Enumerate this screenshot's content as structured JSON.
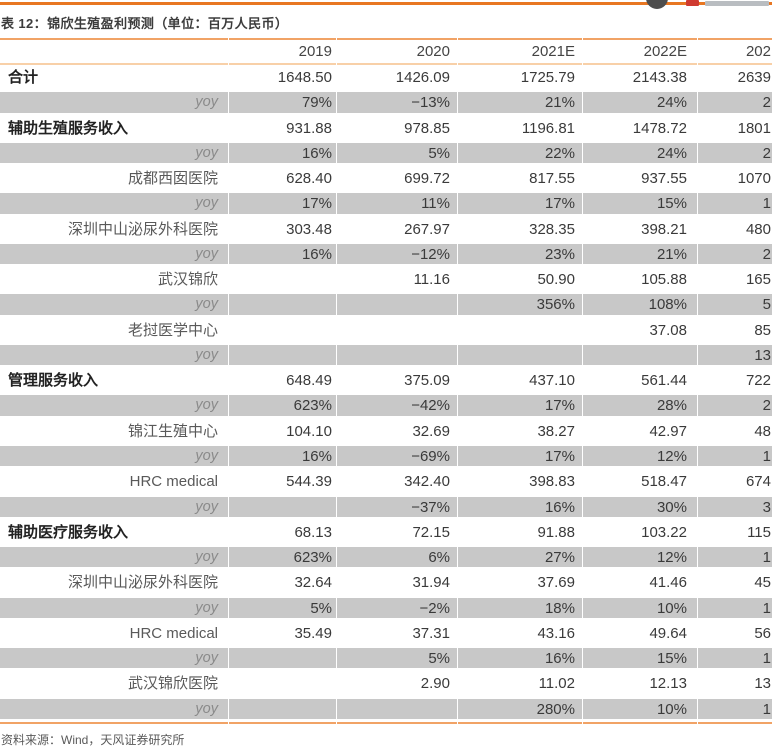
{
  "page": {
    "title": "表 12：锦欣生殖盈利预测（单位：百万人民币）",
    "source_note": "资料来源：Wind，天风证券研究所"
  },
  "colors": {
    "accent_orange": "#e87722",
    "rule_orange": "#f1a366",
    "rule_peach": "#f8d0a8",
    "row_gray": "#c8c8c8",
    "logo_red": "#cf3a30"
  },
  "table": {
    "columns": [
      "",
      "2019",
      "2020",
      "2021E",
      "2022E",
      "202"
    ],
    "rows": [
      {
        "label": "合计",
        "style": "section",
        "values": [
          "1648.50",
          "1426.09",
          "1725.79",
          "2143.38",
          "2639"
        ]
      },
      {
        "label": "yoy",
        "style": "yoy",
        "values": [
          "79%",
          "−13%",
          "21%",
          "24%",
          "2"
        ]
      },
      {
        "label": "辅助生殖服务收入",
        "style": "section",
        "values": [
          "931.88",
          "978.85",
          "1196.81",
          "1478.72",
          "1801"
        ]
      },
      {
        "label": "yoy",
        "style": "yoy",
        "values": [
          "16%",
          "5%",
          "22%",
          "24%",
          "2"
        ]
      },
      {
        "label": "成都西囡医院",
        "style": "sub",
        "values": [
          "628.40",
          "699.72",
          "817.55",
          "937.55",
          "1070"
        ]
      },
      {
        "label": "yoy",
        "style": "yoy",
        "values": [
          "17%",
          "11%",
          "17%",
          "15%",
          "1"
        ]
      },
      {
        "label": "深圳中山泌尿外科医院",
        "style": "sub",
        "values": [
          "303.48",
          "267.97",
          "328.35",
          "398.21",
          "480"
        ]
      },
      {
        "label": "yoy",
        "style": "yoy",
        "values": [
          "16%",
          "−12%",
          "23%",
          "21%",
          "2"
        ]
      },
      {
        "label": "武汉锦欣",
        "style": "sub",
        "values": [
          "",
          "11.16",
          "50.90",
          "105.88",
          "165"
        ]
      },
      {
        "label": "yoy",
        "style": "yoy",
        "values": [
          "",
          "",
          "356%",
          "108%",
          "5"
        ]
      },
      {
        "label": "老挝医学中心",
        "style": "sub",
        "values": [
          "",
          "",
          "",
          "37.08",
          "85"
        ]
      },
      {
        "label": "yoy",
        "style": "yoy",
        "values": [
          "",
          "",
          "",
          "",
          "13"
        ]
      },
      {
        "label": "管理服务收入",
        "style": "section",
        "values": [
          "648.49",
          "375.09",
          "437.10",
          "561.44",
          "722"
        ]
      },
      {
        "label": "yoy",
        "style": "yoy",
        "values": [
          "623%",
          "−42%",
          "17%",
          "28%",
          "2"
        ]
      },
      {
        "label": "锦江生殖中心",
        "style": "sub",
        "values": [
          "104.10",
          "32.69",
          "38.27",
          "42.97",
          "48"
        ]
      },
      {
        "label": "yoy",
        "style": "yoy",
        "values": [
          "16%",
          "−69%",
          "17%",
          "12%",
          "1"
        ]
      },
      {
        "label": "HRC medical",
        "style": "sub",
        "values": [
          "544.39",
          "342.40",
          "398.83",
          "518.47",
          "674"
        ]
      },
      {
        "label": "yoy",
        "style": "yoy",
        "values": [
          "",
          "−37%",
          "16%",
          "30%",
          "3"
        ]
      },
      {
        "label": "辅助医疗服务收入",
        "style": "section",
        "values": [
          "68.13",
          "72.15",
          "91.88",
          "103.22",
          "115"
        ]
      },
      {
        "label": "yoy",
        "style": "yoy",
        "values": [
          "623%",
          "6%",
          "27%",
          "12%",
          "1"
        ]
      },
      {
        "label": "深圳中山泌尿外科医院",
        "style": "sub",
        "values": [
          "32.64",
          "31.94",
          "37.69",
          "41.46",
          "45"
        ]
      },
      {
        "label": "yoy",
        "style": "yoy",
        "values": [
          "5%",
          "−2%",
          "18%",
          "10%",
          "1"
        ]
      },
      {
        "label": "HRC medical",
        "style": "sub",
        "values": [
          "35.49",
          "37.31",
          "43.16",
          "49.64",
          "56"
        ]
      },
      {
        "label": "yoy",
        "style": "yoy",
        "values": [
          "",
          "5%",
          "16%",
          "15%",
          "1"
        ]
      },
      {
        "label": "武汉锦欣医院",
        "style": "sub",
        "values": [
          "",
          "2.90",
          "11.02",
          "12.13",
          "13"
        ]
      },
      {
        "label": "yoy",
        "style": "yoy",
        "values": [
          "",
          "",
          "280%",
          "10%",
          "1"
        ]
      }
    ]
  }
}
